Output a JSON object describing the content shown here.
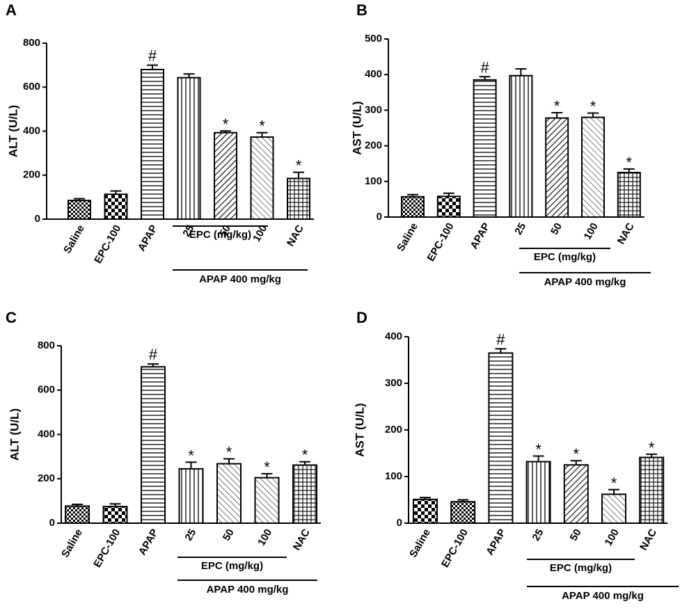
{
  "patterns": [
    "checker-small",
    "checker-large",
    "hlines",
    "vlines",
    "diag-dense",
    "diag-light",
    "grid"
  ],
  "chart_data": [
    {
      "type": "bar",
      "panel": "A",
      "ylabel": "ALT (U/L)",
      "ylim": [
        0,
        800
      ],
      "yticks": [
        "0",
        "200",
        "400",
        "600",
        "800"
      ],
      "categories": [
        "Saline",
        "EPC-100",
        "APAP",
        "25",
        "50",
        "100",
        "NAC"
      ],
      "values": [
        85,
        113,
        680,
        643,
        393,
        373,
        185
      ],
      "errors": [
        8,
        15,
        20,
        17,
        8,
        20,
        28
      ],
      "patterns": [
        0,
        1,
        2,
        3,
        4,
        5,
        6
      ],
      "annotations": [
        "",
        "",
        "#",
        "",
        "*",
        "*",
        "*"
      ],
      "group_epc": "EPC (mg/kg)",
      "group_apap": "APAP 400 mg/kg"
    },
    {
      "type": "bar",
      "panel": "B",
      "ylabel": "AST (U/L)",
      "ylim": [
        0,
        500
      ],
      "yticks": [
        "0",
        "100",
        "200",
        "300",
        "400",
        "500"
      ],
      "categories": [
        "Saline",
        "EPC-100",
        "APAP",
        "25",
        "50",
        "100",
        "NAC"
      ],
      "values": [
        57,
        58,
        385,
        397,
        278,
        280,
        125
      ],
      "errors": [
        6,
        9,
        9,
        19,
        15,
        12,
        10
      ],
      "patterns": [
        0,
        1,
        2,
        3,
        4,
        5,
        6
      ],
      "annotations": [
        "",
        "",
        "#",
        "",
        "*",
        "*",
        "*"
      ],
      "group_epc": "EPC (mg/kg)",
      "group_apap": "APAP 400 mg/kg"
    },
    {
      "type": "bar",
      "panel": "C",
      "ylabel": "ALT (U/L)",
      "ylim": [
        0,
        800
      ],
      "yticks": [
        "0",
        "200",
        "400",
        "600",
        "800"
      ],
      "categories": [
        "Saline",
        "EPC-100",
        "APAP",
        "25",
        "50",
        "100",
        "NAC"
      ],
      "values": [
        77,
        75,
        705,
        245,
        268,
        205,
        262
      ],
      "errors": [
        8,
        12,
        13,
        30,
        22,
        18,
        15
      ],
      "patterns": [
        0,
        1,
        2,
        3,
        5,
        5,
        6
      ],
      "annotations": [
        "",
        "",
        "#",
        "*",
        "*",
        "*",
        "*"
      ],
      "group_epc": "EPC (mg/kg)",
      "group_apap": "APAP 400 mg/kg"
    },
    {
      "type": "bar",
      "panel": "D",
      "ylabel": "AST (U/L)",
      "ylim": [
        0,
        400
      ],
      "yticks": [
        "0",
        "100",
        "200",
        "300",
        "400"
      ],
      "categories": [
        "Saline",
        "EPC-100",
        "APAP",
        "25",
        "50",
        "100",
        "NAC"
      ],
      "values": [
        51,
        46,
        365,
        132,
        125,
        62,
        141
      ],
      "errors": [
        4,
        4,
        9,
        12,
        9,
        10,
        7
      ],
      "patterns": [
        1,
        0,
        2,
        3,
        4,
        5,
        6
      ],
      "annotations": [
        "",
        "",
        "#",
        "*",
        "*",
        "*",
        "*"
      ],
      "group_epc": "EPC (mg/kg)",
      "group_apap": "APAP 400 mg/kg"
    }
  ]
}
